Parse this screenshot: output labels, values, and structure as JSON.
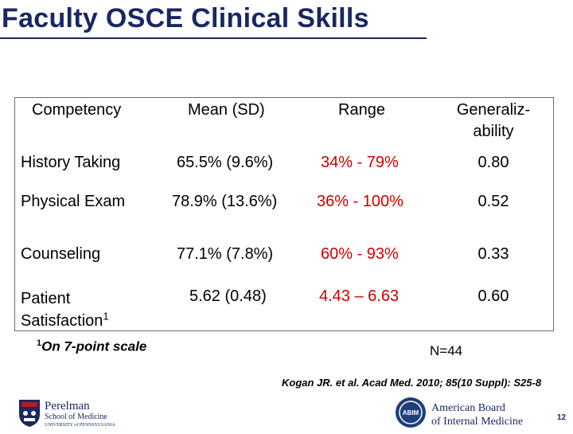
{
  "title": "Faculty OSCE Clinical Skills",
  "table": {
    "headers": {
      "competency": "Competency",
      "mean": "Mean (SD)",
      "range": "Range",
      "generalizability_line1": "Generaliz-",
      "generalizability_line2": "ability"
    },
    "rows": [
      {
        "competency": "History Taking",
        "mean": "65.5% (9.6%)",
        "range": "34% - 79%",
        "generalizability": "0.80"
      },
      {
        "competency": "Physical Exam",
        "mean": "78.9% (13.6%)",
        "range": "36% - 100%",
        "generalizability": "0.52"
      },
      {
        "competency": "Counseling",
        "mean": "77.1% (7.8%)",
        "range": "60% - 93%",
        "generalizability": "0.33"
      },
      {
        "competency_line1": "Patient",
        "competency_line2": "Satisfaction",
        "competency_sup": "1",
        "mean": "5.62 (0.48)",
        "range": "4.43 – 6.63",
        "generalizability": "0.60"
      }
    ]
  },
  "footnote": {
    "sup": "1",
    "text": "On 7-point scale"
  },
  "n_label": "N=44",
  "citation": "Kogan JR. et al. Acad Med. 2010; 85(10 Suppl): S25-8",
  "logo_left": {
    "line1": "Perelman",
    "line2": "School of Medicine",
    "line3": "UNIVERSITY of PENNSYLVANIA"
  },
  "logo_right": {
    "line1": "American Board",
    "line2": "of Internal Medicine",
    "mark": "ABIM"
  },
  "page_number": "12",
  "colors": {
    "title": "#1a2760",
    "range_text": "#cc0000"
  }
}
